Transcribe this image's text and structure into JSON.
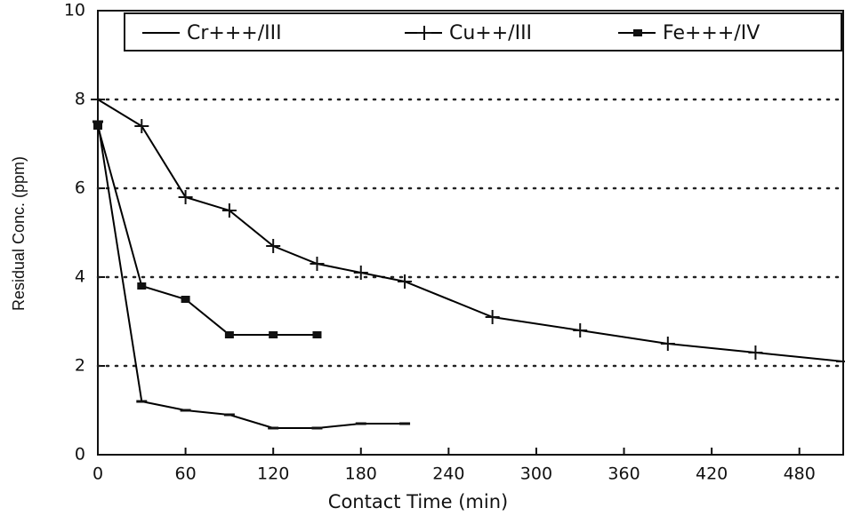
{
  "chart_data": {
    "type": "line",
    "xlabel": "Contact Time (min)",
    "ylabel": "Residual Conc. (ppm)",
    "xlim": [
      0,
      510
    ],
    "ylim": [
      0,
      10
    ],
    "xticks": [
      0,
      60,
      120,
      180,
      240,
      300,
      360,
      420,
      480
    ],
    "yticks": [
      0,
      2,
      4,
      6,
      8,
      10
    ],
    "grid": true,
    "legend": "top",
    "series": [
      {
        "name": "Cr+++/III",
        "color": "#000000",
        "marker": "dash",
        "x": [
          0,
          30,
          60,
          90,
          120,
          150,
          180,
          210
        ],
        "values": [
          7.5,
          1.2,
          1.0,
          0.9,
          0.6,
          0.6,
          0.7,
          0.7
        ]
      },
      {
        "name": "Cu++/III",
        "color": "#000000",
        "marker": "plus",
        "x": [
          0,
          30,
          60,
          90,
          120,
          150,
          180,
          210,
          270,
          330,
          390,
          450,
          510
        ],
        "values": [
          8.0,
          7.4,
          5.8,
          5.5,
          4.7,
          4.3,
          4.1,
          3.9,
          3.1,
          2.8,
          2.5,
          2.3,
          2.1
        ]
      },
      {
        "name": "Fe+++/IV",
        "color": "#000000",
        "marker": "square",
        "x": [
          0,
          30,
          60,
          90,
          120,
          150
        ],
        "values": [
          7.4,
          3.8,
          3.5,
          2.7,
          2.7,
          2.7
        ]
      }
    ]
  }
}
